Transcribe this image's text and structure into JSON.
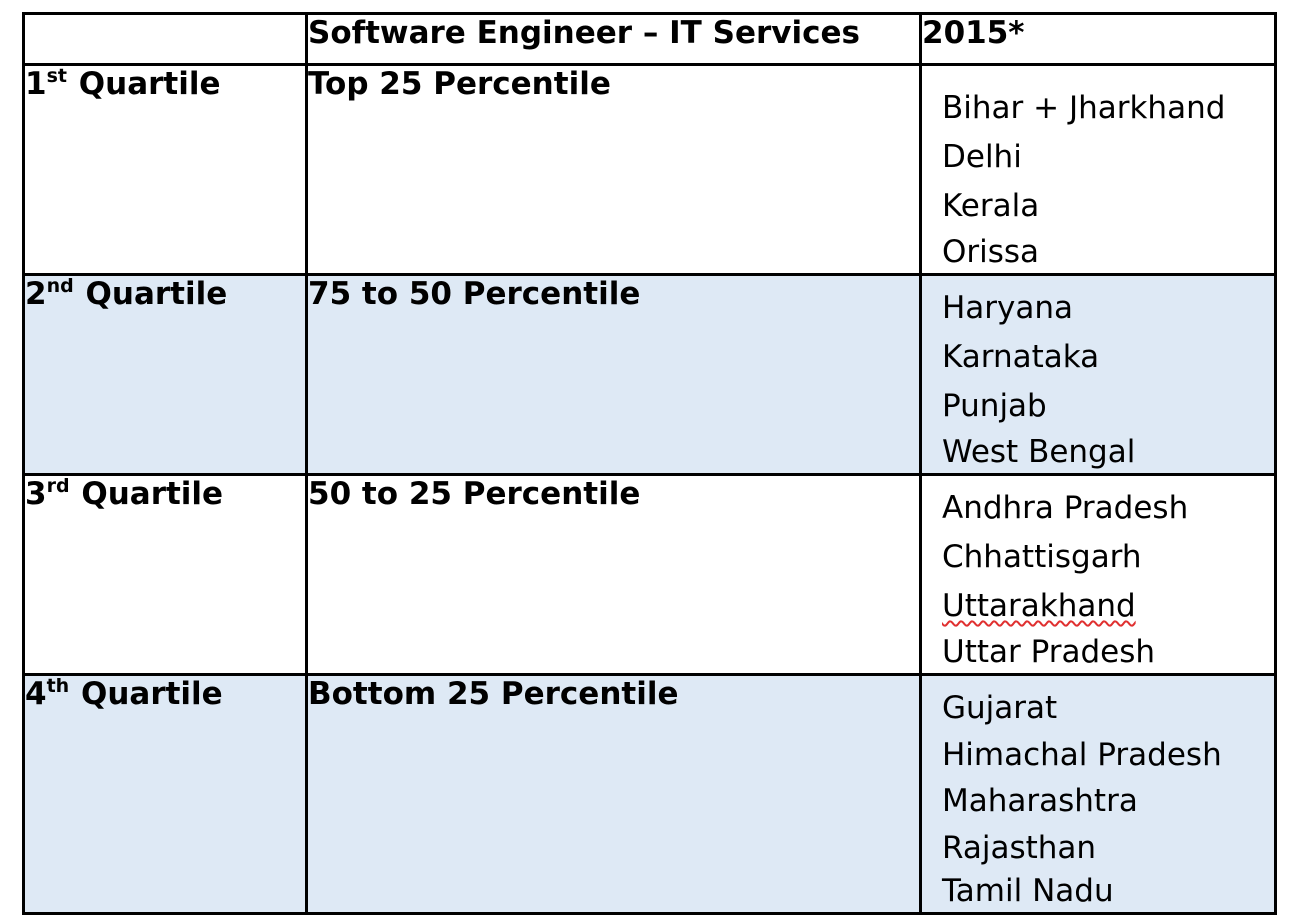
{
  "table": {
    "header": {
      "col1": "",
      "col2": "Software Engineer – IT Services",
      "col3": "2015*"
    },
    "rows": [
      {
        "ordinal_num": "1",
        "ordinal_suffix": "st",
        "quartile_word": "Quartile",
        "percentile": "Top 25 Percentile",
        "states": [
          "Bihar + Jharkhand",
          "Delhi",
          "Kerala",
          "Orissa"
        ]
      },
      {
        "ordinal_num": "2",
        "ordinal_suffix": "nd",
        "quartile_word": "Quartile",
        "percentile": "75 to 50 Percentile",
        "states": [
          "Haryana",
          "Karnataka",
          "Punjab",
          "West Bengal"
        ]
      },
      {
        "ordinal_num": "3",
        "ordinal_suffix": "rd",
        "quartile_word": "Quartile",
        "percentile": "50 to 25 Percentile",
        "states": [
          "Andhra Pradesh",
          "Chhattisgarh",
          "Uttarakhand",
          "Uttar Pradesh"
        ]
      },
      {
        "ordinal_num": "4",
        "ordinal_suffix": "th",
        "quartile_word": "Quartile",
        "percentile": "Bottom 25 Percentile",
        "states": [
          "Gujarat",
          "Himachal Pradesh",
          "Maharashtra",
          "Rajasthan",
          "Tamil Nadu"
        ]
      }
    ]
  },
  "colors": {
    "border": "#000000",
    "shaded_row_bg": "#dee9f5",
    "spell_underline": "#e03030"
  }
}
